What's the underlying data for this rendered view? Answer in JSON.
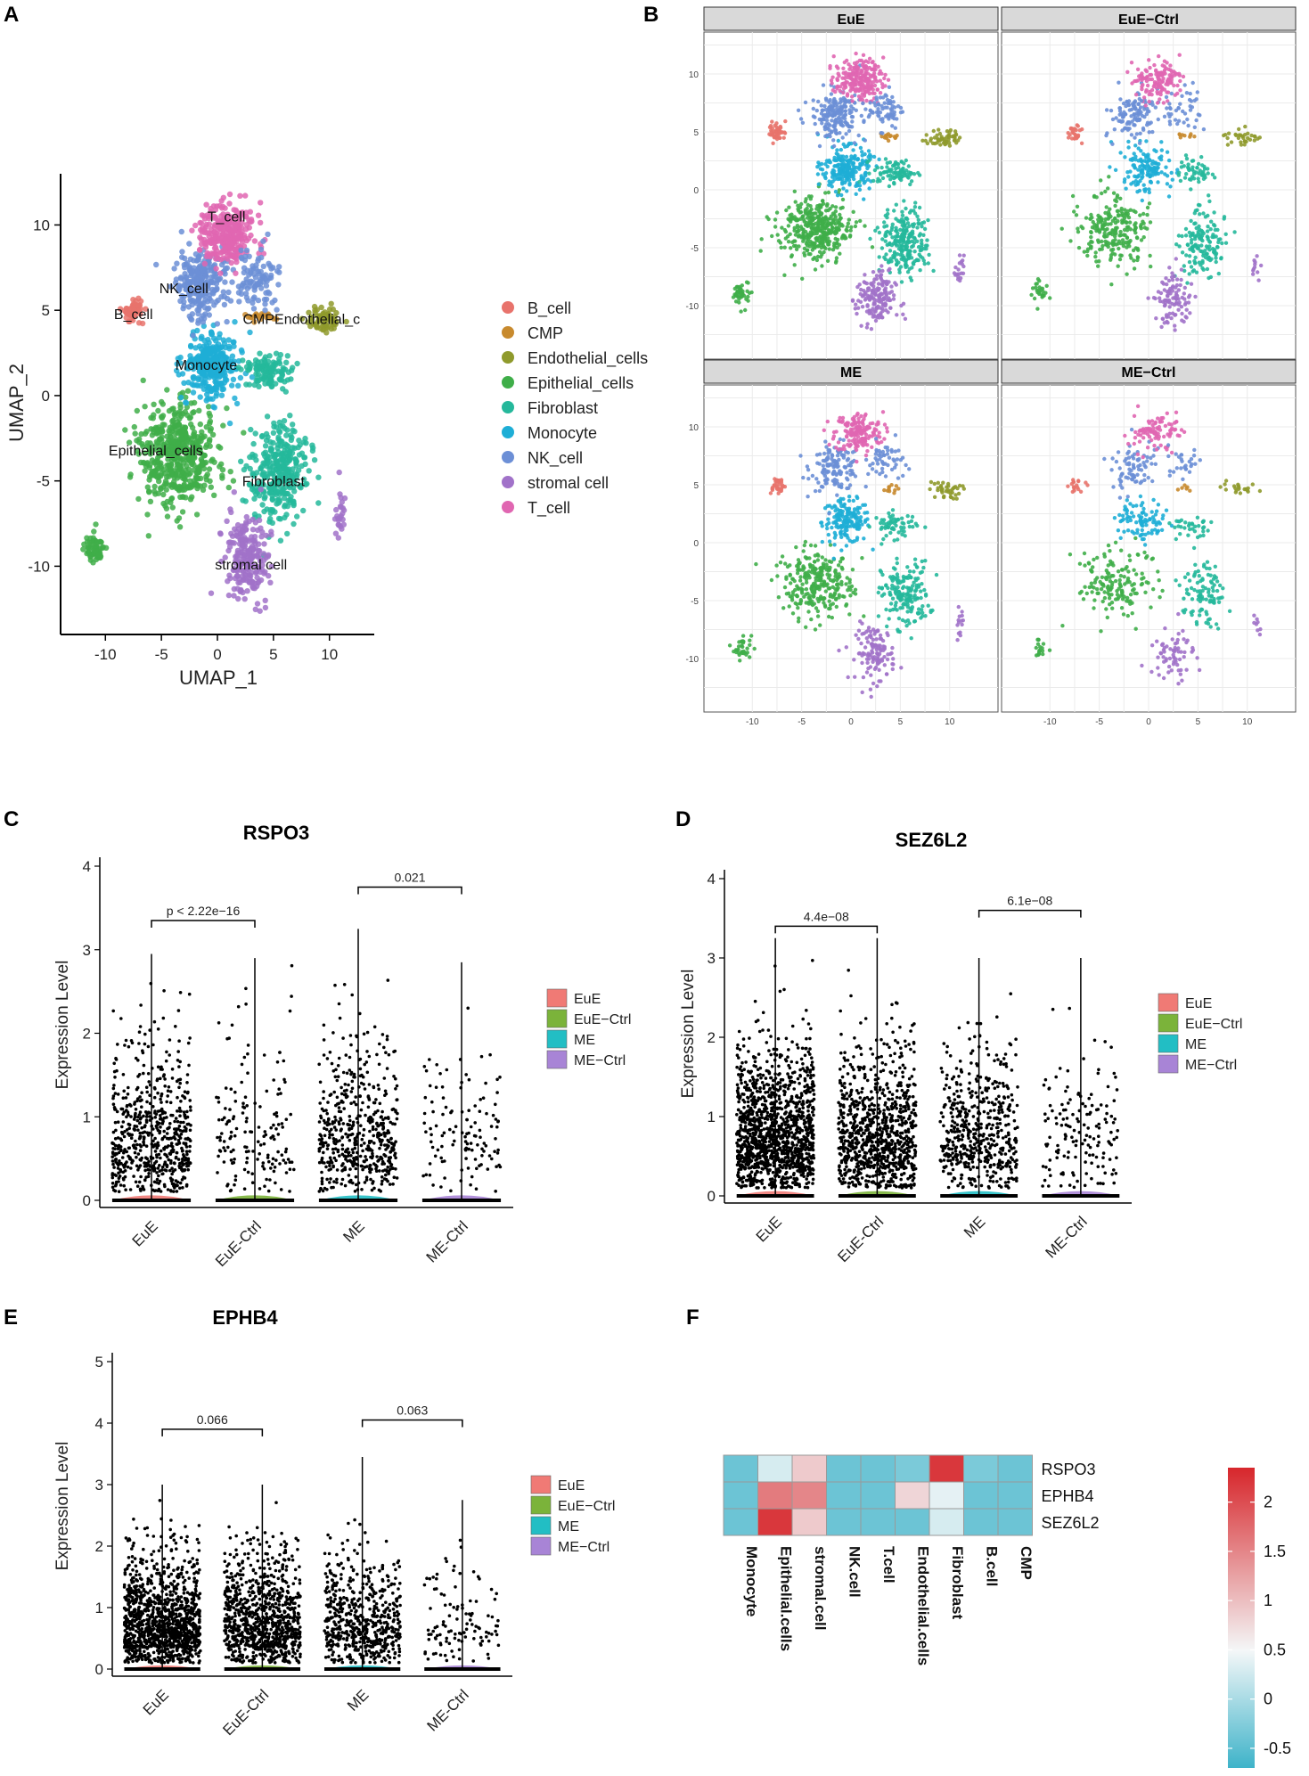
{
  "panel_labels": {
    "A": "A",
    "B": "B",
    "C": "C",
    "D": "D",
    "E": "E",
    "F": "F"
  },
  "colors": {
    "B_cell": "#e8736c",
    "CMP": "#c88a2e",
    "Endothelial_cells": "#8f9a2c",
    "Epithelial_cells": "#3fae49",
    "Fibroblast": "#25b89b",
    "Monocyte": "#1eaed6",
    "NK_cell": "#6c8fd6",
    "stromal_cell": "#a172c9",
    "T_cell": "#e066b1",
    "EuE": "#f07a75",
    "EuE-Ctrl": "#7bb33a",
    "ME": "#22bec4",
    "ME-Ctrl": "#a884d6",
    "hm_low": "#3eb3c9",
    "hm_mid": "#f4f7f8",
    "hm_high": "#d7262b"
  },
  "chart_data": [
    {
      "id": "A",
      "type": "scatter",
      "title": "",
      "xlabel": "UMAP_1",
      "ylabel": "UMAP_2",
      "xlim": [
        -14,
        14
      ],
      "ylim": [
        -14,
        13
      ],
      "xticks": [
        "-10",
        "-5",
        "0",
        "5",
        "10"
      ],
      "yticks": [
        "10",
        "5",
        "0",
        "-5",
        "-10"
      ],
      "legend": [
        "B_cell",
        "CMP",
        "Endothelial_cells",
        "Epithelial_cells",
        "Fibroblast",
        "Monocyte",
        "NK_cell",
        "stromal cell",
        "T_cell"
      ],
      "cluster_labels": [
        {
          "text": "T_cell",
          "x": 0.8,
          "y": 10.2
        },
        {
          "text": "NK_cell",
          "x": -3,
          "y": 6
        },
        {
          "text": "B_cell",
          "x": -7.5,
          "y": 4.5
        },
        {
          "text": "CMPEndothelial_c",
          "x": 7.5,
          "y": 4.2
        },
        {
          "text": "Monocyte",
          "x": -1,
          "y": 1.5
        },
        {
          "text": "Epithelial_cells",
          "x": -5.5,
          "y": -3.5
        },
        {
          "text": "Fibroblast",
          "x": 5,
          "y": -5.3
        },
        {
          "text": "stromal cell",
          "x": 3,
          "y": -10.2
        }
      ]
    },
    {
      "id": "B",
      "type": "scatter",
      "facets": [
        "EuE",
        "EuE−Ctrl",
        "ME",
        "ME−Ctrl"
      ],
      "xticks": [
        "-10",
        "-5",
        "0",
        "5",
        "10"
      ],
      "yticks": [
        "10",
        "5",
        "0",
        "-5",
        "-10"
      ]
    },
    {
      "id": "C",
      "type": "violin",
      "title": "RSPO3",
      "ylabel": "Expression Level",
      "ylim": [
        0,
        4
      ],
      "yticks": [
        "0",
        "1",
        "2",
        "3",
        "4"
      ],
      "categories": [
        "EuE",
        "EuE-Ctrl",
        "ME",
        "ME-Ctrl"
      ],
      "legend": [
        "EuE",
        "EuE−Ctrl",
        "ME",
        "ME−Ctrl"
      ],
      "max_values": [
        2.95,
        2.9,
        3.25,
        2.85
      ],
      "comparisons": [
        {
          "a": 0,
          "b": 1,
          "label": "p < 2.22e−16",
          "y": 3.35
        },
        {
          "a": 2,
          "b": 3,
          "label": "0.021",
          "y": 3.75
        }
      ]
    },
    {
      "id": "D",
      "type": "violin",
      "title": "SEZ6L2",
      "ylabel": "Expression Level",
      "ylim": [
        0,
        4
      ],
      "yticks": [
        "0",
        "1",
        "2",
        "3",
        "4"
      ],
      "categories": [
        "EuE",
        "EuE-Ctrl",
        "ME",
        "ME-Ctrl"
      ],
      "legend": [
        "EuE",
        "EuE−Ctrl",
        "ME",
        "ME−Ctrl"
      ],
      "max_values": [
        3.25,
        3.25,
        3.0,
        3.0
      ],
      "comparisons": [
        {
          "a": 0,
          "b": 1,
          "label": "4.4e−08",
          "y": 3.4
        },
        {
          "a": 2,
          "b": 3,
          "label": "6.1e−08",
          "y": 3.6
        }
      ]
    },
    {
      "id": "E",
      "type": "violin",
      "title": "EPHB4",
      "ylabel": "Expression Level",
      "ylim": [
        0,
        5
      ],
      "yticks": [
        "0",
        "1",
        "2",
        "3",
        "4",
        "5"
      ],
      "categories": [
        "EuE",
        "EuE-Ctrl",
        "ME",
        "ME-Ctrl"
      ],
      "legend": [
        "EuE",
        "EuE−Ctrl",
        "ME",
        "ME−Ctrl"
      ],
      "max_values": [
        3.0,
        3.0,
        3.45,
        2.75
      ],
      "comparisons": [
        {
          "a": 0,
          "b": 1,
          "label": "0.066",
          "y": 3.9
        },
        {
          "a": 2,
          "b": 3,
          "label": "0.063",
          "y": 4.05
        }
      ]
    },
    {
      "id": "F",
      "type": "heatmap",
      "rows": [
        "RSPO3",
        "EPHB4",
        "SEZ6L2"
      ],
      "columns": [
        "Monocyte",
        "Epithelial.cells",
        "stromal.cell",
        "NK.cell",
        "T.cell",
        "Endothelial.cells",
        "Fibroblast",
        "B.cell",
        "CMP"
      ],
      "values": [
        [
          -0.4,
          0.3,
          0.9,
          -0.4,
          -0.4,
          -0.3,
          2.2,
          -0.3,
          -0.4
        ],
        [
          -0.4,
          1.6,
          1.5,
          -0.4,
          -0.4,
          0.8,
          0.4,
          -0.4,
          -0.4
        ],
        [
          -0.4,
          2.2,
          0.9,
          -0.4,
          -0.4,
          -0.4,
          0.3,
          -0.4,
          -0.4
        ]
      ],
      "colorbar": {
        "min": -0.7,
        "max": 2.35,
        "ticks": [
          "2",
          "1.5",
          "1",
          "0.5",
          "0",
          "-0.5"
        ],
        "tick_values": [
          2,
          1.5,
          1,
          0.5,
          0,
          -0.5
        ]
      }
    }
  ]
}
